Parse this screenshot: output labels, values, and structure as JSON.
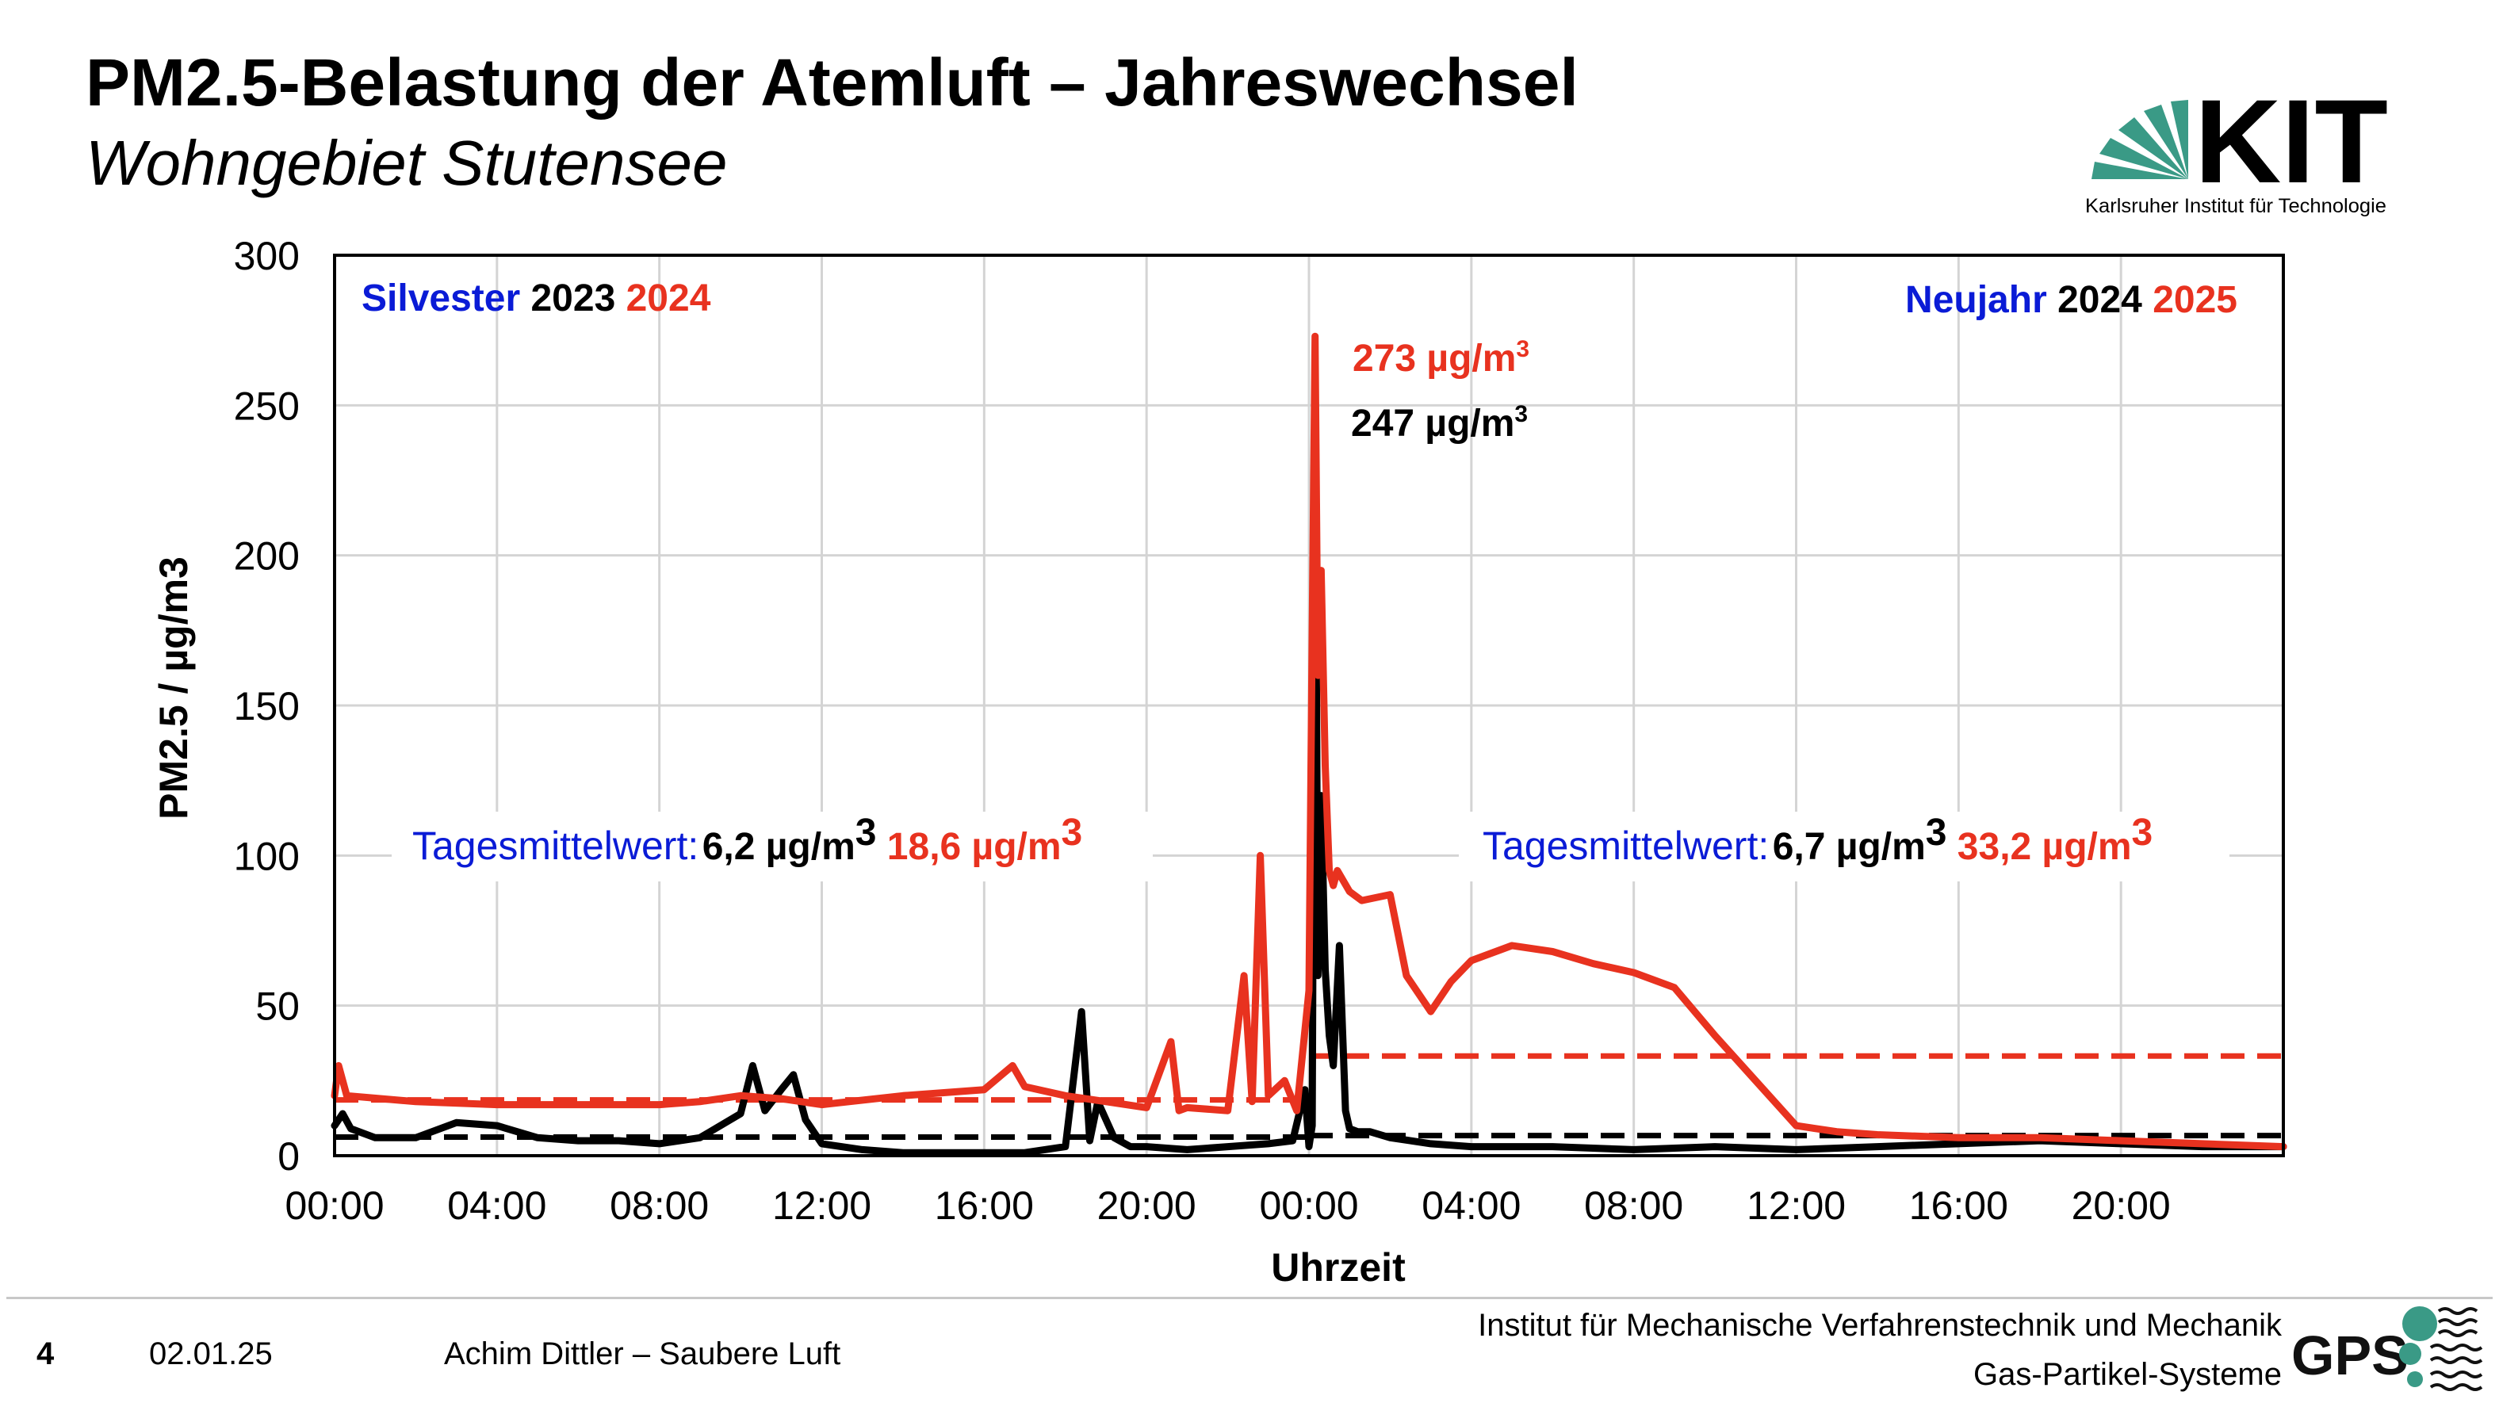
{
  "header": {
    "title": "PM2.5-Belastung der Atemluft – Jahreswechsel",
    "subtitle": "Wohngebiet Stutensee"
  },
  "logo": {
    "brand_letters": "KIT",
    "tagline": "Karlsruher Institut für Technologie",
    "brand_color": "#3a9a86"
  },
  "chart_data": {
    "type": "line",
    "xlabel": "Uhrzeit",
    "ylabel": "PM2.5 / µg/m3",
    "ylim": [
      0,
      300
    ],
    "yticks": [
      "0",
      "50",
      "100",
      "150",
      "200",
      "250",
      "300"
    ],
    "xlim_hours": [
      0,
      48
    ],
    "xtick_labels": [
      "00:00",
      "04:00",
      "08:00",
      "12:00",
      "16:00",
      "20:00",
      "00:00",
      "04:00",
      "08:00",
      "12:00",
      "16:00",
      "20:00"
    ],
    "grid": true,
    "colors": {
      "y2023": "#000000",
      "y2024": "#e8321f",
      "label_blue": "#0a1bd6"
    },
    "series": [
      {
        "name": "2023/2024",
        "color": "#000000",
        "x_hours": [
          0,
          0.2,
          0.4,
          1,
          2,
          3,
          4,
          5,
          6,
          7,
          8,
          9,
          10,
          10.3,
          10.6,
          11,
          11.3,
          11.6,
          12,
          13,
          14,
          15,
          16,
          17,
          18,
          18.4,
          18.6,
          18.8,
          19.2,
          19.6,
          20,
          21,
          22,
          23,
          23.6,
          23.9,
          24.0,
          24.08,
          24.15,
          24.22,
          24.3,
          24.4,
          24.5,
          24.6,
          24.75,
          24.9,
          25.0,
          25.2,
          25.5,
          26,
          27,
          28,
          30,
          32,
          34,
          36,
          38,
          40,
          42,
          44,
          46,
          48
        ],
        "y": [
          10,
          14,
          9,
          6,
          6,
          11,
          10,
          6,
          5,
          5,
          4,
          6,
          14,
          30,
          15,
          22,
          27,
          12,
          4,
          2,
          1,
          1,
          1,
          1,
          3,
          48,
          5,
          18,
          6,
          3,
          3,
          2,
          3,
          4,
          5,
          22,
          3,
          10,
          247,
          60,
          120,
          62,
          40,
          30,
          70,
          15,
          9,
          8,
          8,
          6,
          4,
          3,
          3,
          2,
          3,
          2,
          3,
          4,
          5,
          4,
          3,
          3
        ]
      },
      {
        "name": "2024/2025",
        "color": "#e8321f",
        "x_hours": [
          0,
          0.1,
          0.3,
          2,
          4,
          6,
          8,
          9,
          10,
          11,
          12,
          14,
          16,
          16.7,
          17,
          18,
          19,
          20,
          20.6,
          20.8,
          21,
          22,
          22.4,
          22.6,
          22.8,
          23.0,
          23.4,
          23.7,
          24.0,
          24.08,
          24.15,
          24.22,
          24.3,
          24.4,
          24.5,
          24.6,
          24.7,
          25.0,
          25.3,
          26,
          26.4,
          27,
          27.5,
          28,
          29,
          30,
          31,
          32,
          33,
          34,
          35,
          36,
          37,
          38,
          40,
          42,
          44,
          46,
          48
        ],
        "y": [
          20,
          30,
          20,
          18,
          17,
          17,
          17,
          18,
          20,
          19,
          17,
          20,
          22,
          30,
          23,
          20,
          18,
          16,
          38,
          15,
          16,
          15,
          60,
          18,
          100,
          20,
          25,
          15,
          55,
          175,
          273,
          160,
          195,
          130,
          95,
          90,
          95,
          88,
          85,
          87,
          60,
          48,
          58,
          65,
          70,
          68,
          64,
          61,
          56,
          40,
          25,
          10,
          8,
          7,
          6,
          6,
          5,
          4,
          3
        ]
      },
      {
        "name": "Tagesmittelwert 2023/2024",
        "color": "#000000",
        "dashed": true,
        "segments": [
          {
            "x": [
              0,
              24
            ],
            "y": 6.2
          },
          {
            "x": [
              24,
              48
            ],
            "y": 6.7
          }
        ]
      },
      {
        "name": "Tagesmittelwert 2024/2025",
        "color": "#e8321f",
        "dashed": true,
        "segments": [
          {
            "x": [
              0,
              24
            ],
            "y": 18.6
          },
          {
            "x": [
              24,
              48
            ],
            "y": 33.2
          }
        ]
      }
    ],
    "annotations": {
      "left_header": {
        "word": "Silvester",
        "year_a": "2023",
        "year_b": "2024"
      },
      "right_header": {
        "word": "Neujahr",
        "year_a": "2024",
        "year_b": "2025"
      },
      "peak_red": "273 µg/m",
      "peak_black": "247 µg/m",
      "mean_left": {
        "label": "Tagesmittelwert:",
        "val_a": "6,2 µg/m",
        "val_b": "18,6 µg/m"
      },
      "mean_right": {
        "label": "Tagesmittelwert:",
        "val_a": "6,7 µg/m",
        "val_b": "33,2 µg/m"
      },
      "superscript": "3"
    }
  },
  "footer": {
    "page_number": "4",
    "date": "02.01.25",
    "author": "Achim Dittler – Saubere Luft",
    "institute_line1": "Institut für Mechanische Verfahrenstechnik und Mechanik",
    "institute_line2": "Gas-Partikel-Systeme",
    "gps_letters": "GPS"
  }
}
